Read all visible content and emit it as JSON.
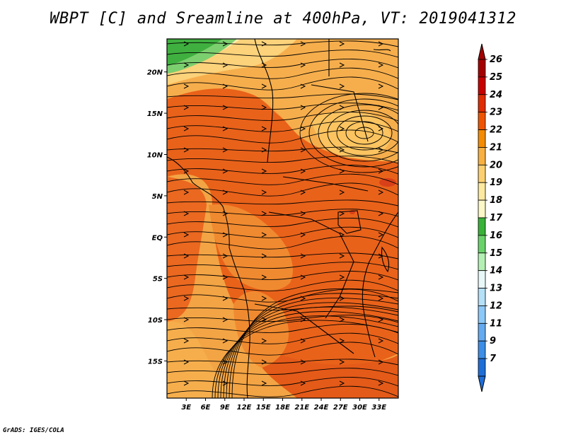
{
  "title": "WBPT [C] and Sreamline at 400hPa, VT: 2019041312",
  "credit": "GrADS: IGES/COLA",
  "map": {
    "lon_range": [
      0,
      36
    ],
    "lat_range": [
      -19.5,
      24
    ],
    "lon_ticks": [
      "3E",
      "6E",
      "9E",
      "12E",
      "15E",
      "18E",
      "21E",
      "24E",
      "27E",
      "30E",
      "33E"
    ],
    "lat_ticks": [
      "20N",
      "15N",
      "10N",
      "5N",
      "EQ",
      "5S",
      "10S",
      "15S"
    ]
  },
  "colorbar": {
    "labels": [
      "26",
      "25",
      "24",
      "23",
      "22",
      "21",
      "20",
      "19",
      "18",
      "17",
      "16",
      "15",
      "14",
      "13",
      "12",
      "11",
      "9",
      "7"
    ],
    "colors": [
      "#a50000",
      "#c80000",
      "#e02c00",
      "#ef5500",
      "#f58b00",
      "#f8b040",
      "#fcd070",
      "#fde9a0",
      "#fdf8c8",
      "#38b238",
      "#6ad26a",
      "#b4f0b4",
      "#e8f8f8",
      "#b4e0f8",
      "#8cc8f8",
      "#64aaf0",
      "#3c8ee6",
      "#1e6ed8"
    ]
  },
  "field_colors": {
    "warm_core": "#e9621a",
    "warm_mid": "#f08a30",
    "mid": "#f6ae4c",
    "cool": "#fcd27a",
    "cooler": "#fdefb0",
    "green": "#3fb03f",
    "lightgreen": "#7ccf6e"
  }
}
